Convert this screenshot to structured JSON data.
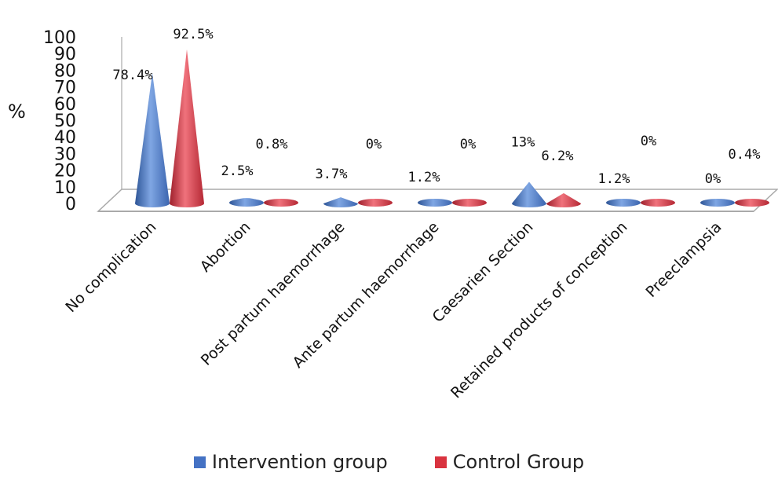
{
  "chart_data": {
    "type": "bar",
    "style": "3d-cone",
    "ylabel": "%",
    "ylim": [
      0,
      100
    ],
    "yticks": [
      "0",
      "10",
      "20",
      "30",
      "40",
      "50",
      "60",
      "70",
      "80",
      "90",
      "100"
    ],
    "categories": [
      "No complication",
      "Abortion",
      "Post partum haemorrhage",
      "Ante partum haemorrhage",
      "Caesarien Section",
      "Retained products of conception",
      "Preeclampsia"
    ],
    "series": [
      {
        "name": "Intervention group",
        "color": "#4472C4",
        "values": [
          78.4,
          2.5,
          3.7,
          1.2,
          13,
          1.2,
          0
        ],
        "labels": [
          "78.4%",
          "2.5%",
          "3.7%",
          "1.2%",
          "13%",
          "1.2%",
          "0%"
        ]
      },
      {
        "name": "Control Group",
        "color": "#D9333F",
        "values": [
          92.5,
          0.8,
          0,
          0,
          6.2,
          0,
          0.4
        ],
        "labels": [
          "92.5%",
          "0.8%",
          "0%",
          "0%",
          "6.2%",
          "0%",
          "0.4%"
        ]
      }
    ],
    "legend": "bottom",
    "grid": false
  }
}
